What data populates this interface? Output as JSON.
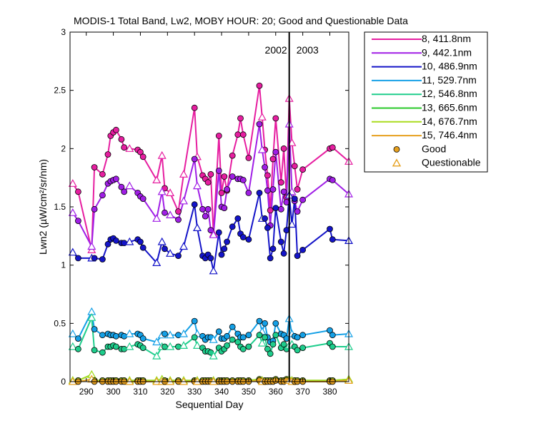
{
  "chart_data": {
    "type": "line",
    "title": "MODIS-1 Total Band, Lw2, MOBY HOUR: 20;  Good and Questionable Data",
    "xlabel": "Sequential Day",
    "ylabel": "Lwn2 (µW/cm²/sr/nm)",
    "xlim": [
      284,
      387
    ],
    "ylim": [
      0,
      3
    ],
    "xticks": [
      290,
      300,
      310,
      320,
      330,
      340,
      350,
      360,
      370,
      380
    ],
    "yticks": [
      0,
      0.5,
      1,
      1.5,
      2,
      2.5,
      3
    ],
    "ytick_labels": [
      "0",
      "0.5",
      "1",
      "1.5",
      "2",
      "2.5",
      "3"
    ],
    "divider": {
      "x": 365,
      "left_label": "2002",
      "right_label": "2003"
    },
    "legend_position": "outside-right",
    "x": [
      285,
      287,
      292,
      293,
      296,
      298,
      299,
      300,
      301,
      303,
      304,
      306,
      309,
      310,
      311,
      316,
      318,
      319,
      321,
      324,
      326,
      330,
      331,
      333,
      334,
      335,
      336,
      337,
      339,
      340,
      341,
      342,
      344,
      346,
      347,
      348,
      350,
      354,
      355,
      356,
      357,
      358,
      359,
      360,
      362,
      363,
      364,
      365,
      366,
      367,
      368,
      370,
      380,
      381,
      387
    ],
    "q_x": [
      285,
      292,
      306,
      316,
      318,
      321,
      326,
      331,
      337,
      355,
      365,
      366,
      387
    ],
    "series": [
      {
        "name": "8, 411.8nm",
        "color": "#e61ea0",
        "values": [
          1.7,
          1.63,
          1.13,
          1.84,
          1.78,
          1.95,
          2.11,
          2.14,
          2.16,
          2.08,
          2.01,
          2.0,
          1.99,
          1.97,
          1.93,
          1.73,
          1.94,
          1.66,
          1.62,
          1.46,
          1.78,
          2.35,
          1.93,
          1.77,
          1.74,
          1.71,
          1.78,
          1.27,
          2.11,
          1.62,
          1.76,
          1.64,
          1.94,
          2.12,
          2.26,
          2.12,
          1.92,
          2.54,
          2.27,
          1.99,
          1.77,
          1.47,
          1.91,
          2.26,
          1.71,
          2.0,
          1.58,
          2.43,
          2.05,
          1.85,
          1.65,
          1.82,
          2.0,
          2.01,
          1.89
        ]
      },
      {
        "name": "9, 442.1nm",
        "color": "#a01ee6",
        "values": [
          1.45,
          1.38,
          1.16,
          1.48,
          1.6,
          1.7,
          1.72,
          1.73,
          1.74,
          1.67,
          1.63,
          1.68,
          1.62,
          1.59,
          1.57,
          1.4,
          1.63,
          1.45,
          1.43,
          1.39,
          1.55,
          1.91,
          1.68,
          1.48,
          1.42,
          1.48,
          1.3,
          1.26,
          1.81,
          1.5,
          1.49,
          1.65,
          1.76,
          1.74,
          1.74,
          1.73,
          1.62,
          2.21,
          1.99,
          1.84,
          1.64,
          1.34,
          1.65,
          1.97,
          1.48,
          1.63,
          1.54,
          2.21,
          1.63,
          1.55,
          1.46,
          1.56,
          1.74,
          1.73,
          1.61
        ]
      },
      {
        "name": "10, 486.9nm",
        "color": "#1414c8",
        "values": [
          1.11,
          1.06,
          1.06,
          1.06,
          1.05,
          1.18,
          1.22,
          1.23,
          1.21,
          1.19,
          1.19,
          1.2,
          1.22,
          1.2,
          1.15,
          1.02,
          1.2,
          1.14,
          1.1,
          1.08,
          1.16,
          1.52,
          1.32,
          1.08,
          1.06,
          1.09,
          1.06,
          0.95,
          1.28,
          1.09,
          1.14,
          1.2,
          1.33,
          1.4,
          1.27,
          1.24,
          1.22,
          1.62,
          1.4,
          1.4,
          1.32,
          1.06,
          1.14,
          1.49,
          1.2,
          1.1,
          1.3,
          1.6,
          1.35,
          1.57,
          1.08,
          1.13,
          1.31,
          1.22,
          1.21
        ]
      },
      {
        "name": "11, 529.7nm",
        "color": "#14a0e6",
        "values": [
          0.41,
          0.37,
          0.6,
          0.45,
          0.4,
          0.41,
          0.4,
          0.4,
          0.39,
          0.4,
          0.39,
          0.41,
          0.41,
          0.4,
          0.37,
          0.34,
          0.4,
          0.41,
          0.4,
          0.4,
          0.41,
          0.52,
          0.41,
          0.39,
          0.36,
          0.38,
          0.38,
          0.36,
          0.43,
          0.37,
          0.37,
          0.39,
          0.47,
          0.41,
          0.38,
          0.38,
          0.4,
          0.52,
          0.43,
          0.5,
          0.38,
          0.34,
          0.35,
          0.5,
          0.41,
          0.4,
          0.37,
          0.54,
          0.41,
          0.39,
          0.38,
          0.4,
          0.44,
          0.4,
          0.41
        ]
      },
      {
        "name": "12, 546.8nm",
        "color": "#1ecd8c",
        "values": [
          0.3,
          0.28,
          0.55,
          0.27,
          0.25,
          0.3,
          0.3,
          0.31,
          0.3,
          0.28,
          0.28,
          0.3,
          0.32,
          0.31,
          0.29,
          0.22,
          0.3,
          0.3,
          0.3,
          0.3,
          0.31,
          0.38,
          0.31,
          0.29,
          0.26,
          0.26,
          0.25,
          0.22,
          0.29,
          0.26,
          0.28,
          0.31,
          0.36,
          0.34,
          0.3,
          0.28,
          0.3,
          0.4,
          0.33,
          0.38,
          0.28,
          0.24,
          0.32,
          0.4,
          0.29,
          0.32,
          0.28,
          0.31,
          0.32,
          0.3,
          0.27,
          0.29,
          0.33,
          0.3,
          0.3
        ]
      },
      {
        "name": "13, 665.6nm",
        "color": "#28c828",
        "values": [
          0.01,
          0.01,
          0.06,
          0.01,
          0.01,
          0.01,
          0.01,
          0.01,
          0.01,
          0.01,
          0.01,
          0.01,
          0.01,
          0.01,
          0.01,
          0.01,
          0.02,
          0.01,
          0.01,
          0.01,
          0.01,
          0.01,
          0.01,
          0.01,
          0.01,
          0.01,
          0.01,
          0.01,
          0.01,
          0.01,
          0.01,
          0.01,
          0.01,
          0.01,
          0.01,
          0.01,
          0.01,
          0.02,
          0.01,
          0.01,
          0.01,
          0.01,
          0.01,
          0.02,
          0.01,
          0.01,
          0.02,
          0.02,
          0.01,
          0.01,
          0.01,
          0.01,
          0.01,
          0.01,
          0.02
        ]
      },
      {
        "name": "14, 676.7nm",
        "color": "#aadc1e",
        "values": [
          0.01,
          0.01,
          0.06,
          0.01,
          0.01,
          0.01,
          0.01,
          0.01,
          0.01,
          0.01,
          0.01,
          0.01,
          0.01,
          0.01,
          0.01,
          0.01,
          0.02,
          0.01,
          0.01,
          0.01,
          0.01,
          0.01,
          0.01,
          0.01,
          0.01,
          0.01,
          0.01,
          0.01,
          0.01,
          0.01,
          0.01,
          0.01,
          0.01,
          0.01,
          0.01,
          0.01,
          0.01,
          0.02,
          0.01,
          0.01,
          0.01,
          0.01,
          0.01,
          0.02,
          0.01,
          0.01,
          0.02,
          0.02,
          0.01,
          0.01,
          0.01,
          0.01,
          0.01,
          0.01,
          0.02
        ]
      },
      {
        "name": "15, 746.4nm",
        "color": "#e6a01e",
        "values": [
          0.0,
          0.0,
          0.02,
          0.0,
          0.0,
          0.0,
          0.0,
          0.0,
          0.0,
          0.0,
          0.0,
          0.0,
          0.0,
          0.0,
          0.0,
          0.0,
          0.0,
          0.0,
          0.0,
          0.0,
          0.0,
          0.0,
          0.0,
          0.0,
          0.0,
          0.0,
          0.0,
          0.0,
          0.0,
          0.0,
          0.0,
          0.0,
          0.0,
          0.0,
          0.0,
          0.0,
          0.0,
          0.01,
          0.0,
          0.0,
          0.0,
          0.0,
          0.0,
          0.01,
          0.0,
          0.0,
          0.01,
          0.01,
          0.0,
          0.0,
          0.0,
          0.0,
          0.0,
          0.0,
          0.01
        ]
      }
    ],
    "legend": {
      "good_label": "Good",
      "questionable_label": "Questionable",
      "good_color": "#e6a01e",
      "questionable_color": "#e6a01e"
    }
  }
}
